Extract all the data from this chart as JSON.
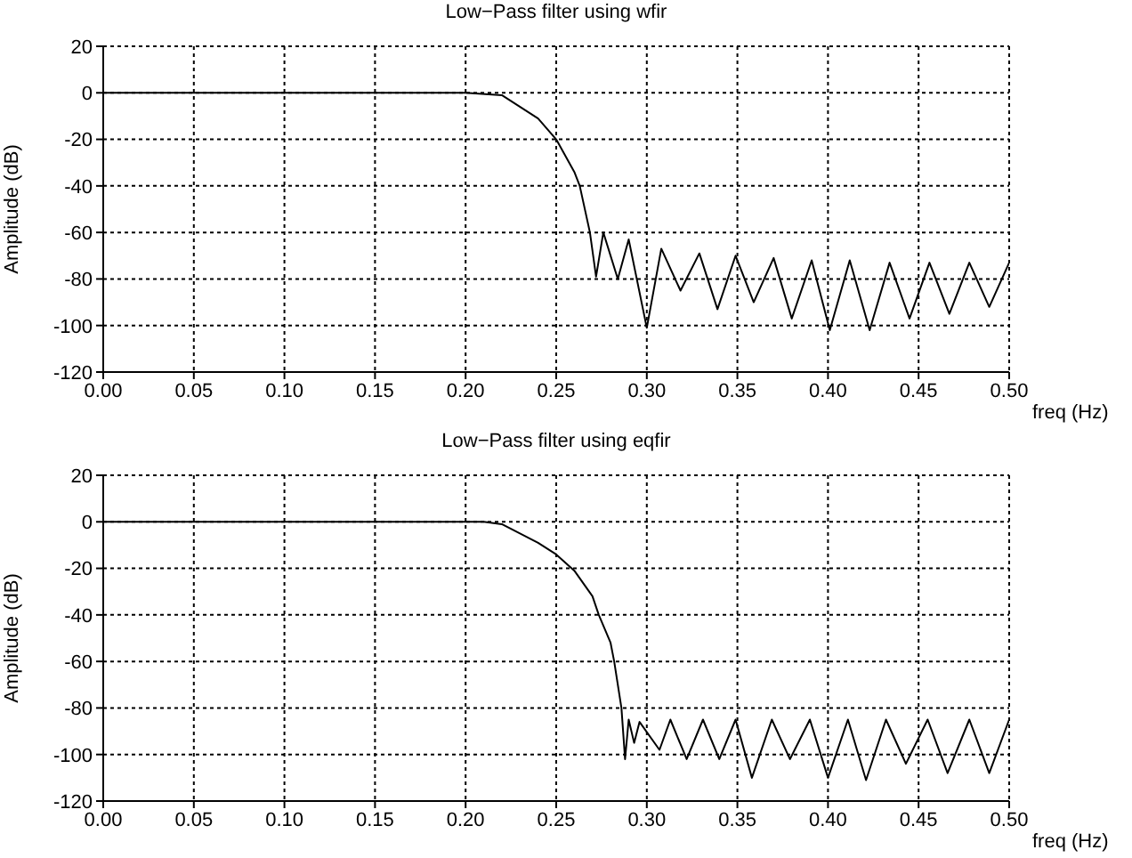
{
  "chart_data": [
    {
      "type": "line",
      "title": "Low−Pass filter using wfir",
      "xlabel": "freq (Hz)",
      "ylabel": "Amplitude (dB)",
      "xlim": [
        0,
        0.5
      ],
      "ylim": [
        -120,
        20
      ],
      "xticks": [
        {
          "value": 0,
          "label": "0.00"
        },
        {
          "value": 0.05,
          "label": "0.05"
        },
        {
          "value": 0.1,
          "label": "0.10"
        },
        {
          "value": 0.15,
          "label": "0.15"
        },
        {
          "value": 0.2,
          "label": "0.20"
        },
        {
          "value": 0.25,
          "label": "0.25"
        },
        {
          "value": 0.3,
          "label": "0.30"
        },
        {
          "value": 0.35,
          "label": "0.35"
        },
        {
          "value": 0.4,
          "label": "0.40"
        },
        {
          "value": 0.45,
          "label": "0.45"
        },
        {
          "value": 0.5,
          "label": "0.50"
        }
      ],
      "yticks": [
        -120,
        -100,
        -80,
        -60,
        -40,
        -20,
        0,
        20
      ],
      "grid": true,
      "marker": "none",
      "line_style": "solid",
      "series": [
        {
          "color": "#000000",
          "x": [
            0,
            0.1,
            0.18,
            0.2,
            0.22,
            0.24,
            0.25,
            0.26,
            0.263,
            0.2686,
            0.272,
            0.276,
            0.284,
            0.29,
            0.3,
            0.308,
            0.3186,
            0.329,
            0.339,
            0.349,
            0.359,
            0.37,
            0.38,
            0.391,
            0.401,
            0.412,
            0.423,
            0.434,
            0.445,
            0.456,
            0.467,
            0.478,
            0.489,
            0.5
          ],
          "values": [
            0,
            0,
            0,
            0,
            -1,
            -11,
            -20,
            -34,
            -40,
            -60,
            -79,
            -60,
            -80,
            -63,
            -101,
            -67,
            -85,
            -69,
            -93,
            -70,
            -90,
            -71,
            -97,
            -72,
            -102,
            -72,
            -102,
            -73,
            -97,
            -73,
            -95,
            -73,
            -92,
            -73
          ]
        }
      ]
    },
    {
      "type": "line",
      "title": "Low−Pass filter using eqfir",
      "xlabel": "freq (Hz)",
      "ylabel": "Amplitude (dB)",
      "xlim": [
        0,
        0.5
      ],
      "ylim": [
        -120,
        20
      ],
      "xticks": [
        {
          "value": 0,
          "label": "0.00"
        },
        {
          "value": 0.05,
          "label": "0.05"
        },
        {
          "value": 0.1,
          "label": "0.10"
        },
        {
          "value": 0.15,
          "label": "0.15"
        },
        {
          "value": 0.2,
          "label": "0.20"
        },
        {
          "value": 0.25,
          "label": "0.25"
        },
        {
          "value": 0.3,
          "label": "0.30"
        },
        {
          "value": 0.35,
          "label": "0.35"
        },
        {
          "value": 0.4,
          "label": "0.40"
        },
        {
          "value": 0.45,
          "label": "0.45"
        },
        {
          "value": 0.5,
          "label": "0.50"
        }
      ],
      "yticks": [
        -120,
        -100,
        -80,
        -60,
        -40,
        -20,
        0,
        20
      ],
      "grid": true,
      "marker": "none",
      "line_style": "solid",
      "series": [
        {
          "color": "#000000",
          "x": [
            0,
            0.1,
            0.2,
            0.21,
            0.22,
            0.24,
            0.25,
            0.26,
            0.27,
            0.2735,
            0.28,
            0.282,
            0.286,
            0.288,
            0.29,
            0.293,
            0.296,
            0.307,
            0.313,
            0.322,
            0.331,
            0.34,
            0.349,
            0.358,
            0.369,
            0.379,
            0.39,
            0.4,
            0.411,
            0.421,
            0.432,
            0.443,
            0.455,
            0.466,
            0.478,
            0.489,
            0.5
          ],
          "values": [
            0,
            0,
            0,
            0,
            -1,
            -9,
            -14,
            -21,
            -32,
            -40,
            -52,
            -60,
            -80,
            -102,
            -85,
            -95,
            -86,
            -98,
            -85,
            -102,
            -85,
            -102,
            -85,
            -110,
            -85,
            -102,
            -85,
            -110,
            -85,
            -111,
            -85,
            -104,
            -85,
            -108,
            -85,
            -108,
            -85
          ]
        }
      ]
    }
  ]
}
